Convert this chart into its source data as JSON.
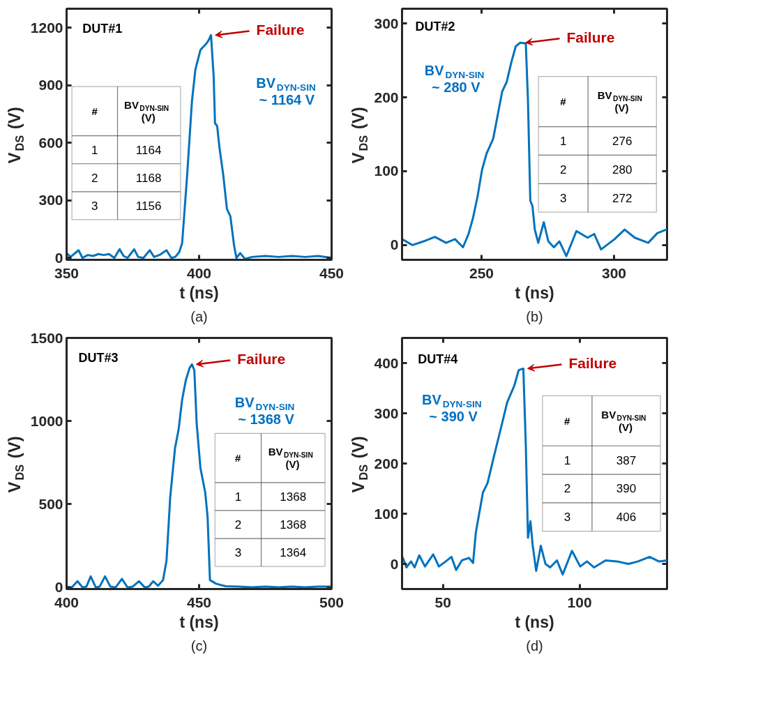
{
  "chart_data": [
    {
      "type": "line",
      "xlabel": "t (ns)",
      "ylabel": "V$_{DS}$ (V)",
      "xlim": [
        350,
        450
      ],
      "ylim": [
        -10,
        1300
      ],
      "xticks": [
        350,
        400,
        450
      ],
      "yticks": [
        0,
        300,
        600,
        900,
        1200
      ],
      "series": [
        {
          "color": "#0072bd",
          "x": [
            350,
            351.5,
            354.5,
            356,
            358,
            360,
            362,
            364,
            366,
            368,
            370,
            371.5,
            373,
            375.5,
            377,
            379,
            381.4,
            383,
            385,
            387.7,
            389.5,
            391,
            392.5,
            393.6,
            395.5,
            397.3,
            398.6,
            400.5,
            402.7,
            403.6,
            404.5,
            405.5,
            406,
            406.8,
            407.7,
            409.1,
            410.5,
            411.8,
            413.2,
            414.1,
            415.5,
            417.3,
            420,
            425,
            430,
            435,
            440,
            445,
            450
          ],
          "values": [
            25,
            5,
            40,
            0,
            15,
            10,
            20,
            15,
            20,
            0,
            45,
            10,
            0,
            45,
            5,
            0,
            40,
            5,
            15,
            40,
            0,
            5,
            30,
            77,
            434,
            817,
            983,
            1085,
            1117,
            1136,
            1162,
            945,
            702,
            689,
            574,
            434,
            255,
            217,
            64,
            0,
            25,
            -5,
            5,
            10,
            5,
            10,
            5,
            10,
            0
          ]
        }
      ],
      "annotations": [
        "DUT#1",
        {
          "text": "Failure",
          "x": 404.5,
          "y": 1162
        },
        "BV$_{DYN-SIN}$\n~ 1164 V",
        "(a)",
        "#",
        "BV$_{DYN-SIN}$ (V)",
        "1",
        "1164",
        "2",
        "1168",
        "3",
        "1156"
      ]
    },
    {
      "type": "line",
      "xlabel": "t (ns)",
      "ylabel": "V$_{DS}$ (V)",
      "xlim": [
        220,
        320
      ],
      "ylim": [
        -20,
        320
      ],
      "xticks": [
        250,
        300
      ],
      "yticks": [
        0,
        100,
        200,
        300
      ],
      "series": [
        {
          "color": "#0072bd",
          "x": [
            220,
            223.9,
            228.1,
            232.4,
            236.6,
            240,
            243,
            245.1,
            246.8,
            248.5,
            250.2,
            251.9,
            254.4,
            256.1,
            257.8,
            259.5,
            261.2,
            262.9,
            264.6,
            266.7,
            267.5,
            268.4,
            269.2,
            270.1,
            271.4,
            273.5,
            275.2,
            277.3,
            279.4,
            282,
            285.8,
            290,
            292.5,
            295.1,
            300.2,
            304,
            307.8,
            312.9,
            316.3,
            319.7
          ],
          "values": [
            8,
            0,
            5,
            11,
            3,
            8,
            -3,
            15,
            37,
            66,
            102,
            124,
            144,
            176,
            208,
            221,
            247,
            269,
            274,
            273,
            198,
            60,
            53,
            21,
            3,
            31,
            5,
            -3,
            5,
            -15,
            19,
            10,
            15,
            -6,
            8,
            21,
            10,
            3,
            16,
            21
          ]
        }
      ],
      "annotations": [
        "DUT#2",
        {
          "text": "Failure",
          "x": 265,
          "y": 274
        },
        "BV$_{DYN-SIN}$\n~ 280 V",
        "(b)",
        "#",
        "BV$_{DYN-SIN}$ (V)",
        "1",
        "276",
        "2",
        "280",
        "3",
        "272"
      ]
    },
    {
      "type": "line",
      "xlabel": "t (ns)",
      "ylabel": "V$_{DS}$ (V)",
      "xlim": [
        400,
        500
      ],
      "ylim": [
        -10,
        1500
      ],
      "xticks": [
        400,
        450,
        500
      ],
      "yticks": [
        0,
        500,
        1000,
        1500
      ],
      "series": [
        {
          "color": "#0072bd",
          "x": [
            400,
            402,
            404.1,
            406,
            407.5,
            409.1,
            411,
            412.5,
            414.5,
            416.5,
            418.5,
            420.9,
            423,
            425,
            427.3,
            429.5,
            431,
            432.7,
            434.5,
            436.4,
            437.7,
            439.1,
            440.9,
            442.3,
            443.6,
            445,
            446.4,
            447.3,
            448.2,
            449.1,
            450.5,
            452.3,
            453.2,
            454.1,
            456.4,
            460,
            465,
            470,
            475,
            480,
            485,
            490,
            495,
            500
          ],
          "values": [
            5,
            0,
            37,
            0,
            5,
            66,
            0,
            5,
            66,
            5,
            0,
            51,
            0,
            5,
            37,
            0,
            5,
            37,
            10,
            44,
            161,
            542,
            836,
            953,
            1129,
            1246,
            1319,
            1341,
            1305,
            982,
            718,
            572,
            425,
            44,
            22,
            7,
            5,
            0,
            5,
            0,
            5,
            0,
            5,
            5
          ]
        }
      ],
      "annotations": [
        "DUT#3",
        {
          "text": "Failure",
          "x": 447.3,
          "y": 1341
        },
        "BV$_{DYN-SIN}$\n~ 1368 V",
        "(c)",
        "#",
        "BV$_{DYN-SIN}$ (V)",
        "1",
        "1368",
        "2",
        "1368",
        "3",
        "1364"
      ]
    },
    {
      "type": "line",
      "xlabel": "t (ns)",
      "ylabel": "V$_{DS}$ (V)",
      "xlim": [
        35,
        132
      ],
      "ylim": [
        -50,
        450
      ],
      "xticks": [
        50,
        100
      ],
      "yticks": [
        0,
        100,
        200,
        300,
        400
      ],
      "series": [
        {
          "color": "#0072bd",
          "x": [
            35.3,
            36.6,
            38.3,
            39.6,
            41.3,
            43.4,
            46.4,
            48.5,
            51,
            53.1,
            54.8,
            56.9,
            59.5,
            61,
            62,
            64.6,
            66.3,
            68.8,
            71.4,
            73.5,
            76.1,
            77.7,
            79.4,
            80.3,
            81.1,
            82,
            82.8,
            84.1,
            85.8,
            87.5,
            89.2,
            91.7,
            93.8,
            97.2,
            100.2,
            102.7,
            105.3,
            109.5,
            113.7,
            117.9,
            121.4,
            125.6,
            129,
            132
          ],
          "values": [
            12,
            -7,
            5,
            -7,
            17,
            -5,
            19,
            -5,
            5,
            14,
            -12,
            7,
            12,
            2,
            62,
            142,
            161,
            218,
            275,
            322,
            355,
            386,
            389,
            237,
            52,
            85,
            38,
            -14,
            36,
            0,
            -7,
            7,
            -21,
            26,
            -5,
            5,
            -7,
            7,
            5,
            0,
            5,
            14,
            5,
            7
          ]
        }
      ],
      "annotations": [
        "DUT#4",
        {
          "text": "Failure",
          "x": 79.4,
          "y": 389
        },
        "BV$_{DYN-SIN}$\n~ 390 V",
        "(d)",
        "#",
        "BV$_{DYN-SIN}$ (V)",
        "1",
        "387",
        "2",
        "390",
        "3",
        "406"
      ]
    }
  ]
}
